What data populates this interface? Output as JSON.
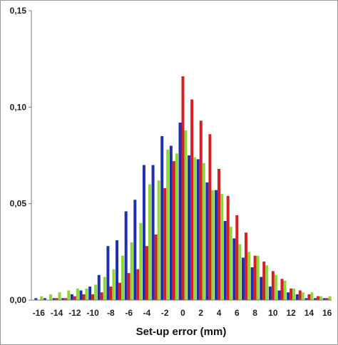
{
  "chart_data": {
    "type": "bar",
    "title": "",
    "xlabel": "Set-up error (mm)",
    "ylabel": "",
    "ylim": [
      0,
      0.15
    ],
    "y_ticks": [
      0,
      0.05,
      0.1,
      0.15
    ],
    "y_tick_labels": [
      "0,00",
      "0,05",
      "0,10",
      "0,15"
    ],
    "x_tick_labels": [
      "-16",
      "-14",
      "-12",
      "-10",
      "-8",
      "-6",
      "-4",
      "-2",
      "0",
      "2",
      "4",
      "6",
      "8",
      "10",
      "12",
      "14",
      "16"
    ],
    "grid": false,
    "legend": "none",
    "categories": [
      -16,
      -15,
      -14,
      -13,
      -12,
      -11,
      -10,
      -9,
      -8,
      -7,
      -6,
      -5,
      -4,
      -3,
      -2,
      -1,
      0,
      1,
      2,
      3,
      4,
      5,
      6,
      7,
      8,
      9,
      10,
      11,
      12,
      13,
      14,
      15,
      16
    ],
    "series": [
      {
        "color": "#1f2fb0",
        "values": [
          0.001,
          0.001,
          0.001,
          0.001,
          0.003,
          0.005,
          0.007,
          0.013,
          0.028,
          0.031,
          0.046,
          0.052,
          0.07,
          0.07,
          0.085,
          0.08,
          0.092,
          0.075,
          0.073,
          0.061,
          0.057,
          0.041,
          0.032,
          0.022,
          0.017,
          0.012,
          0.007,
          0.005,
          0.004,
          0.003,
          0.001,
          0.001,
          0.001
        ]
      },
      {
        "color": "#d42020",
        "values": [
          0.0,
          0.0,
          0.001,
          0.001,
          0.002,
          0.003,
          0.003,
          0.004,
          0.007,
          0.009,
          0.014,
          0.016,
          0.028,
          0.034,
          0.058,
          0.072,
          0.116,
          0.104,
          0.093,
          0.086,
          0.068,
          0.054,
          0.044,
          0.035,
          0.023,
          0.02,
          0.015,
          0.011,
          0.006,
          0.005,
          0.003,
          0.002,
          0.001
        ]
      },
      {
        "color": "#8ed63a",
        "values": [
          0.002,
          0.003,
          0.004,
          0.005,
          0.006,
          0.006,
          0.008,
          0.012,
          0.016,
          0.023,
          0.03,
          0.04,
          0.06,
          0.062,
          0.078,
          0.076,
          0.088,
          0.074,
          0.071,
          0.057,
          0.055,
          0.038,
          0.029,
          0.025,
          0.023,
          0.018,
          0.013,
          0.01,
          0.006,
          0.004,
          0.004,
          0.002,
          0.002
        ]
      }
    ]
  }
}
